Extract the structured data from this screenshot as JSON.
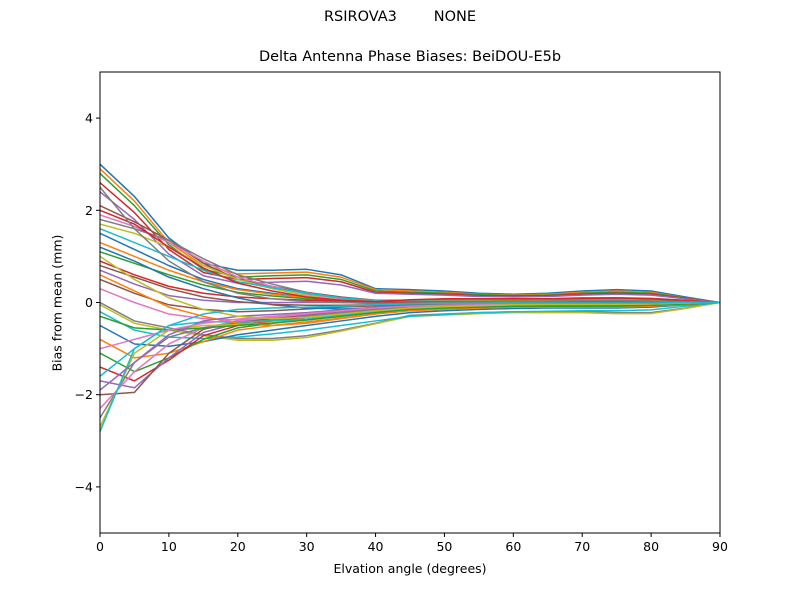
{
  "header": {
    "suptitle": "RSIROVA3        NONE"
  },
  "chart_data": {
    "type": "line",
    "title": "Delta Antenna Phase Biases: BeiDOU-E5b",
    "xlabel": "Elvation angle (degrees)",
    "ylabel": "Bias from mean (mm)",
    "xlim": [
      0,
      90
    ],
    "ylim": [
      -5,
      5
    ],
    "xticks": [
      0,
      10,
      20,
      30,
      40,
      50,
      60,
      70,
      80,
      90
    ],
    "yticks": [
      -4,
      -2,
      0,
      2,
      4
    ],
    "x": [
      0,
      5,
      10,
      15,
      20,
      25,
      30,
      35,
      40,
      45,
      50,
      55,
      60,
      65,
      70,
      75,
      80,
      85,
      90
    ],
    "grid": false,
    "legend": "none",
    "colors": [
      "#1f77b4",
      "#ff7f0e",
      "#2ca02c",
      "#d62728",
      "#9467bd",
      "#8c564b",
      "#e377c2",
      "#7f7f7f",
      "#bcbd22",
      "#17becf"
    ],
    "series": [
      {
        "values": [
          3.0,
          2.3,
          1.4,
          0.85,
          0.7,
          0.7,
          0.72,
          0.6,
          0.3,
          0.28,
          0.25,
          0.2,
          0.18,
          0.2,
          0.25,
          0.28,
          0.25,
          0.12,
          0.0
        ]
      },
      {
        "values": [
          2.9,
          2.2,
          1.3,
          0.8,
          0.62,
          0.64,
          0.66,
          0.55,
          0.28,
          0.25,
          0.22,
          0.18,
          0.16,
          0.18,
          0.22,
          0.25,
          0.22,
          0.1,
          0.0
        ]
      },
      {
        "values": [
          2.8,
          2.1,
          1.25,
          0.72,
          0.55,
          0.58,
          0.6,
          0.5,
          0.25,
          0.22,
          0.2,
          0.17,
          0.15,
          0.16,
          0.2,
          0.22,
          0.2,
          0.1,
          0.0
        ]
      },
      {
        "values": [
          2.6,
          1.95,
          1.15,
          0.65,
          0.5,
          0.52,
          0.54,
          0.45,
          0.22,
          0.2,
          0.18,
          0.15,
          0.14,
          0.15,
          0.18,
          0.2,
          0.18,
          0.09,
          0.0
        ]
      },
      {
        "values": [
          2.4,
          1.8,
          1.05,
          0.58,
          0.42,
          0.44,
          0.46,
          0.38,
          0.2,
          0.18,
          0.16,
          0.13,
          0.12,
          0.13,
          0.16,
          0.18,
          0.16,
          0.08,
          0.0
        ]
      },
      {
        "values": [
          2.1,
          1.75,
          1.35,
          0.85,
          0.5,
          0.35,
          0.22,
          0.12,
          0.05,
          0.05,
          0.06,
          0.06,
          0.07,
          0.08,
          0.1,
          0.1,
          0.09,
          0.05,
          0.0
        ]
      },
      {
        "values": [
          1.9,
          1.65,
          1.3,
          0.9,
          0.55,
          0.35,
          0.18,
          0.08,
          0.02,
          0.03,
          0.04,
          0.05,
          0.06,
          0.07,
          0.08,
          0.08,
          0.07,
          0.04,
          0.0
        ]
      },
      {
        "values": [
          1.8,
          1.6,
          1.35,
          0.95,
          0.6,
          0.4,
          0.22,
          0.1,
          0.04,
          0.04,
          0.05,
          0.05,
          0.06,
          0.07,
          0.08,
          0.08,
          0.07,
          0.04,
          0.0
        ]
      },
      {
        "values": [
          1.7,
          1.5,
          1.2,
          0.8,
          0.5,
          0.3,
          0.15,
          0.05,
          0.0,
          0.01,
          0.02,
          0.03,
          0.04,
          0.05,
          0.06,
          0.06,
          0.05,
          0.03,
          0.0
        ]
      },
      {
        "values": [
          1.6,
          1.3,
          1.0,
          0.7,
          0.45,
          0.32,
          0.2,
          0.1,
          0.04,
          0.04,
          0.04,
          0.05,
          0.05,
          0.06,
          0.06,
          0.06,
          0.05,
          0.03,
          0.0
        ]
      },
      {
        "values": [
          1.5,
          1.15,
          0.8,
          0.5,
          0.3,
          0.2,
          0.1,
          0.04,
          0.0,
          0.0,
          0.01,
          0.02,
          0.03,
          0.04,
          0.05,
          0.05,
          0.04,
          0.02,
          0.0
        ]
      },
      {
        "values": [
          1.3,
          1.0,
          0.7,
          0.45,
          0.28,
          0.18,
          0.1,
          0.05,
          0.02,
          0.02,
          0.03,
          0.03,
          0.04,
          0.04,
          0.05,
          0.05,
          0.04,
          0.02,
          0.0
        ]
      },
      {
        "values": [
          1.1,
          0.85,
          0.6,
          0.38,
          0.22,
          0.14,
          0.08,
          0.04,
          0.01,
          0.01,
          0.02,
          0.02,
          0.03,
          0.03,
          0.04,
          0.04,
          0.03,
          0.02,
          0.0
        ]
      },
      {
        "values": [
          0.9,
          0.6,
          0.35,
          0.2,
          0.12,
          0.08,
          0.05,
          0.03,
          0.01,
          0.0,
          0.0,
          0.01,
          0.02,
          0.02,
          0.03,
          0.03,
          0.02,
          0.01,
          0.0
        ]
      },
      {
        "values": [
          0.7,
          0.4,
          0.15,
          0.05,
          0.0,
          0.0,
          0.0,
          0.0,
          -0.02,
          -0.02,
          -0.02,
          -0.01,
          0.0,
          0.0,
          0.01,
          0.01,
          0.01,
          0.0,
          0.0
        ]
      },
      {
        "values": [
          0.5,
          0.2,
          -0.05,
          -0.15,
          -0.2,
          -0.18,
          -0.14,
          -0.1,
          -0.07,
          -0.06,
          -0.05,
          -0.04,
          -0.03,
          -0.02,
          -0.01,
          0.0,
          0.0,
          0.0,
          0.0
        ]
      },
      {
        "values": [
          0.3,
          0.0,
          -0.25,
          -0.35,
          -0.38,
          -0.34,
          -0.28,
          -0.2,
          -0.13,
          -0.1,
          -0.08,
          -0.06,
          -0.05,
          -0.04,
          -0.03,
          -0.02,
          -0.01,
          0.0,
          0.0
        ]
      },
      {
        "values": [
          0.0,
          -0.4,
          -0.55,
          -0.7,
          -0.78,
          -0.78,
          -0.72,
          -0.6,
          -0.45,
          -0.28,
          -0.25,
          -0.22,
          -0.2,
          -0.2,
          -0.2,
          -0.22,
          -0.22,
          -0.12,
          0.0
        ]
      },
      {
        "values": [
          -0.05,
          -0.45,
          -0.6,
          -0.72,
          -0.82,
          -0.82,
          -0.76,
          -0.62,
          -0.46,
          -0.3,
          -0.27,
          -0.24,
          -0.22,
          -0.22,
          -0.22,
          -0.24,
          -0.24,
          -0.13,
          0.0
        ]
      },
      {
        "values": [
          -0.2,
          -0.6,
          -0.75,
          -0.78,
          -0.75,
          -0.68,
          -0.6,
          -0.5,
          -0.4,
          -0.3,
          -0.26,
          -0.22,
          -0.2,
          -0.19,
          -0.18,
          -0.18,
          -0.16,
          -0.08,
          0.0
        ]
      },
      {
        "values": [
          -0.5,
          -0.9,
          -0.95,
          -0.85,
          -0.7,
          -0.6,
          -0.5,
          -0.4,
          -0.3,
          -0.22,
          -0.18,
          -0.15,
          -0.13,
          -0.12,
          -0.12,
          -0.12,
          -0.1,
          -0.05,
          0.0
        ]
      },
      {
        "values": [
          -0.8,
          -1.2,
          -1.1,
          -0.85,
          -0.6,
          -0.5,
          -0.42,
          -0.34,
          -0.25,
          -0.18,
          -0.15,
          -0.12,
          -0.1,
          -0.1,
          -0.1,
          -0.1,
          -0.08,
          -0.04,
          0.0
        ]
      },
      {
        "values": [
          -1.1,
          -1.5,
          -1.2,
          -0.8,
          -0.55,
          -0.45,
          -0.36,
          -0.28,
          -0.2,
          -0.14,
          -0.12,
          -0.1,
          -0.08,
          -0.08,
          -0.08,
          -0.08,
          -0.06,
          -0.03,
          0.0
        ]
      },
      {
        "values": [
          -1.4,
          -1.7,
          -1.25,
          -0.72,
          -0.5,
          -0.4,
          -0.32,
          -0.24,
          -0.16,
          -0.12,
          -0.1,
          -0.08,
          -0.07,
          -0.06,
          -0.06,
          -0.06,
          -0.05,
          -0.02,
          0.0
        ]
      },
      {
        "values": [
          -1.7,
          -1.85,
          -1.2,
          -0.65,
          -0.45,
          -0.36,
          -0.28,
          -0.2,
          -0.14,
          -0.1,
          -0.08,
          -0.07,
          -0.06,
          -0.05,
          -0.05,
          -0.05,
          -0.04,
          -0.02,
          0.0
        ]
      },
      {
        "values": [
          -2.0,
          -1.95,
          -1.1,
          -0.58,
          -0.42,
          -0.34,
          -0.26,
          -0.18,
          -0.12,
          -0.08,
          -0.07,
          -0.06,
          -0.05,
          -0.04,
          -0.04,
          -0.04,
          -0.03,
          -0.01,
          0.0
        ]
      },
      {
        "values": [
          -2.3,
          -1.5,
          -0.9,
          -0.55,
          -0.4,
          -0.32,
          -0.25,
          -0.18,
          -0.12,
          -0.08,
          -0.06,
          -0.05,
          -0.04,
          -0.04,
          -0.04,
          -0.04,
          -0.03,
          -0.01,
          0.0
        ]
      },
      {
        "values": [
          -2.5,
          -1.3,
          -0.75,
          -0.55,
          -0.45,
          -0.38,
          -0.3,
          -0.22,
          -0.15,
          -0.1,
          -0.08,
          -0.07,
          -0.06,
          -0.05,
          -0.05,
          -0.05,
          -0.04,
          -0.02,
          0.0
        ]
      },
      {
        "values": [
          -2.7,
          -1.1,
          -0.6,
          -0.5,
          -0.48,
          -0.44,
          -0.38,
          -0.3,
          -0.2,
          -0.13,
          -0.1,
          -0.08,
          -0.07,
          -0.06,
          -0.06,
          -0.06,
          -0.05,
          -0.02,
          0.0
        ]
      },
      {
        "values": [
          -2.8,
          -1.0,
          -0.5,
          -0.42,
          -0.42,
          -0.4,
          -0.36,
          -0.28,
          -0.19,
          -0.12,
          -0.09,
          -0.07,
          -0.06,
          -0.05,
          -0.05,
          -0.05,
          -0.04,
          -0.02,
          0.0
        ]
      },
      {
        "values": [
          1.2,
          0.9,
          0.55,
          0.3,
          0.1,
          -0.05,
          -0.12,
          -0.14,
          -0.12,
          -0.08,
          -0.05,
          -0.03,
          -0.02,
          -0.01,
          0.0,
          0.0,
          0.0,
          0.0,
          0.0
        ]
      },
      {
        "values": [
          0.6,
          0.25,
          -0.1,
          -0.3,
          -0.45,
          -0.5,
          -0.45,
          -0.35,
          -0.25,
          -0.16,
          -0.12,
          -0.1,
          -0.08,
          -0.07,
          -0.06,
          -0.06,
          -0.05,
          -0.02,
          0.0
        ]
      },
      {
        "values": [
          -0.3,
          -0.55,
          -0.6,
          -0.55,
          -0.5,
          -0.45,
          -0.38,
          -0.3,
          -0.22,
          -0.15,
          -0.12,
          -0.1,
          -0.08,
          -0.07,
          -0.07,
          -0.07,
          -0.06,
          -0.03,
          0.0
        ]
      },
      {
        "values": [
          2.0,
          1.7,
          1.2,
          0.75,
          0.42,
          0.25,
          0.12,
          0.05,
          0.02,
          0.06,
          0.08,
          0.08,
          0.08,
          0.08,
          0.09,
          0.1,
          0.08,
          0.04,
          0.0
        ]
      },
      {
        "values": [
          -1.9,
          -1.3,
          -0.7,
          -0.4,
          -0.3,
          -0.26,
          -0.22,
          -0.16,
          -0.1,
          -0.06,
          -0.05,
          -0.04,
          -0.04,
          -0.03,
          -0.03,
          -0.03,
          -0.02,
          -0.01,
          0.0
        ]
      },
      {
        "values": [
          0.8,
          0.55,
          0.3,
          0.12,
          0.02,
          -0.04,
          -0.06,
          -0.06,
          -0.05,
          -0.04,
          -0.03,
          -0.02,
          -0.01,
          -0.01,
          0.0,
          0.0,
          0.0,
          0.0,
          0.0
        ]
      },
      {
        "values": [
          -1.0,
          -0.8,
          -0.6,
          -0.45,
          -0.36,
          -0.3,
          -0.24,
          -0.18,
          -0.12,
          -0.08,
          -0.06,
          -0.05,
          -0.04,
          -0.04,
          -0.04,
          -0.04,
          -0.03,
          -0.01,
          0.0
        ]
      },
      {
        "values": [
          2.5,
          1.6,
          0.9,
          0.45,
          0.2,
          0.08,
          0.02,
          0.0,
          -0.02,
          -0.01,
          0.0,
          0.01,
          0.02,
          0.03,
          0.04,
          0.04,
          0.03,
          0.02,
          0.0
        ]
      },
      {
        "values": [
          1.0,
          0.5,
          0.1,
          -0.15,
          -0.3,
          -0.35,
          -0.32,
          -0.25,
          -0.18,
          -0.12,
          -0.09,
          -0.07,
          -0.05,
          -0.04,
          -0.04,
          -0.04,
          -0.03,
          -0.01,
          0.0
        ]
      },
      {
        "values": [
          -1.6,
          -1.0,
          -0.5,
          -0.25,
          -0.15,
          -0.12,
          -0.1,
          -0.08,
          -0.05,
          -0.03,
          -0.02,
          -0.02,
          -0.01,
          -0.01,
          -0.01,
          -0.01,
          -0.01,
          0.0,
          0.0
        ]
      }
    ]
  }
}
